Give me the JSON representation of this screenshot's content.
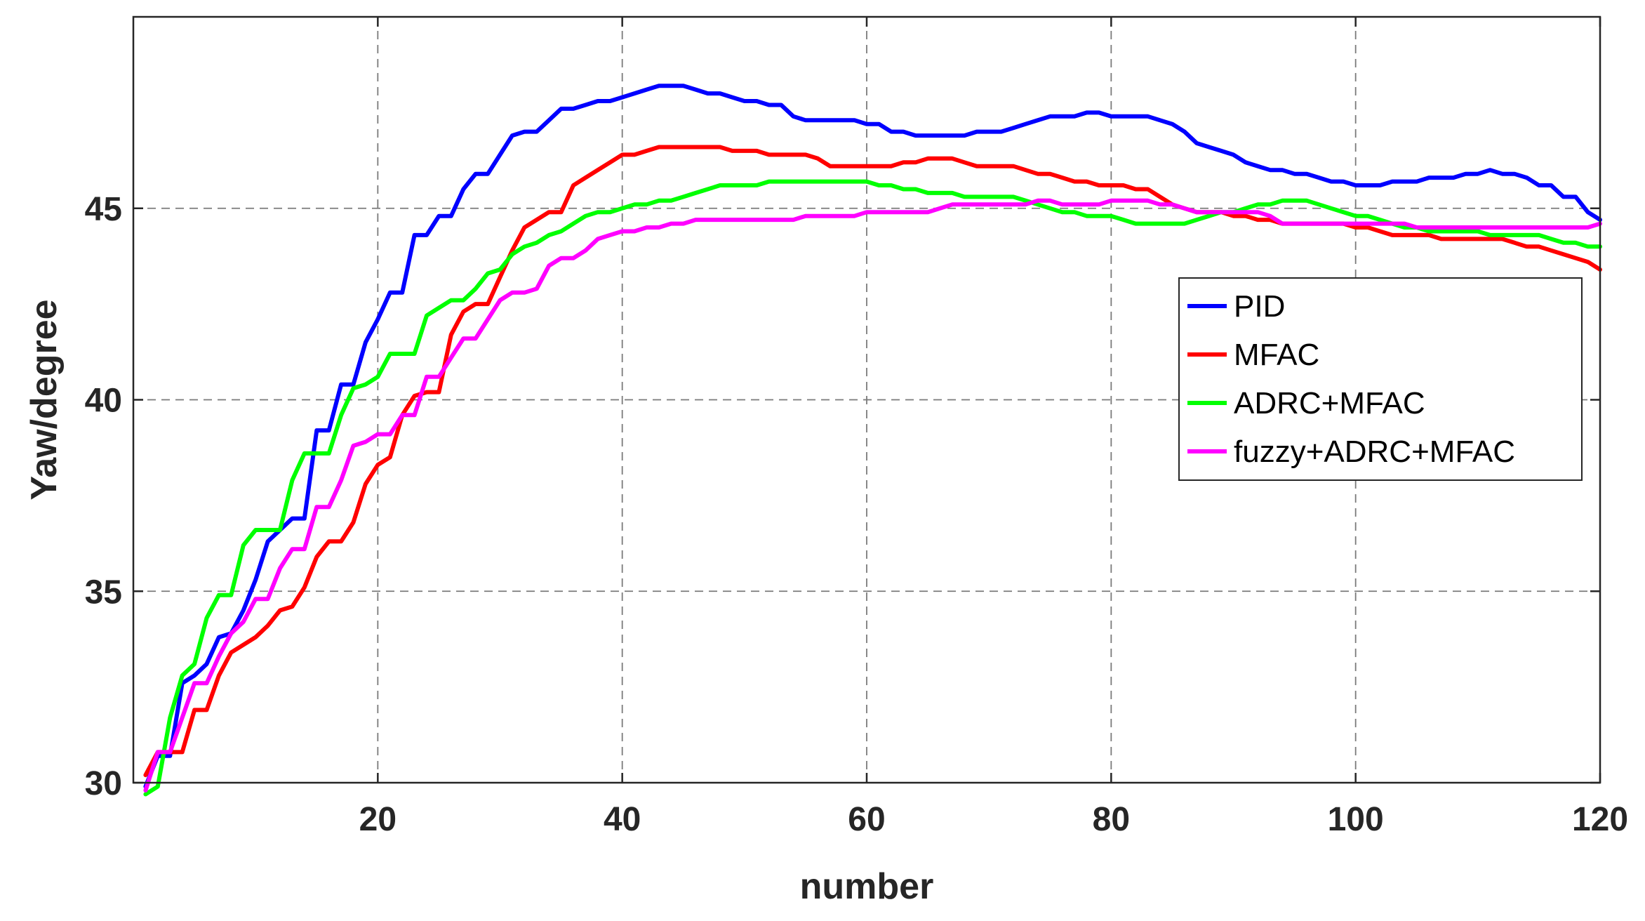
{
  "chart_data": {
    "type": "line",
    "title": "",
    "xlabel": "number",
    "ylabel": "Yaw/degree",
    "xlim": [
      0,
      120
    ],
    "ylim": [
      30,
      50
    ],
    "xticks": [
      20,
      40,
      60,
      80,
      100,
      120
    ],
    "yticks": [
      30,
      35,
      40,
      45
    ],
    "grid": true,
    "grid_style": "dashed",
    "legend_position": "right",
    "series": [
      {
        "name": "PID",
        "color": "#0000ff",
        "x": [
          1,
          2,
          3,
          4,
          5,
          6,
          7,
          8,
          9,
          10,
          11,
          12,
          13,
          14,
          15,
          16,
          17,
          18,
          19,
          20,
          21,
          22,
          23,
          24,
          25,
          26,
          27,
          28,
          29,
          30,
          31,
          32,
          33,
          34,
          35,
          36,
          37,
          38,
          39,
          40,
          41,
          42,
          43,
          44,
          45,
          46,
          47,
          48,
          49,
          50,
          51,
          52,
          53,
          54,
          55,
          56,
          57,
          58,
          59,
          60,
          61,
          62,
          63,
          64,
          65,
          66,
          67,
          68,
          69,
          70,
          71,
          72,
          73,
          74,
          75,
          76,
          77,
          78,
          79,
          80,
          81,
          82,
          83,
          84,
          85,
          86,
          87,
          88,
          89,
          90,
          91,
          92,
          93,
          94,
          95,
          96,
          97,
          98,
          99,
          100,
          101,
          102,
          103,
          104,
          105,
          106,
          107,
          108,
          109,
          110,
          111,
          112,
          113,
          114,
          115,
          116,
          117,
          118,
          119,
          120
        ],
        "y": [
          29.9,
          30.7,
          30.7,
          32.6,
          32.8,
          33.1,
          33.8,
          33.9,
          34.5,
          35.3,
          36.3,
          36.6,
          36.9,
          36.9,
          39.2,
          39.2,
          40.4,
          40.4,
          41.5,
          42.1,
          42.8,
          42.8,
          44.3,
          44.3,
          44.8,
          44.8,
          45.5,
          45.9,
          45.9,
          46.4,
          46.9,
          47.0,
          47.0,
          47.3,
          47.6,
          47.6,
          47.7,
          47.8,
          47.8,
          47.9,
          48.0,
          48.1,
          48.2,
          48.2,
          48.2,
          48.1,
          48.0,
          48.0,
          47.9,
          47.8,
          47.8,
          47.7,
          47.7,
          47.4,
          47.3,
          47.3,
          47.3,
          47.3,
          47.3,
          47.2,
          47.2,
          47.0,
          47.0,
          46.9,
          46.9,
          46.9,
          46.9,
          46.9,
          47.0,
          47.0,
          47.0,
          47.1,
          47.2,
          47.3,
          47.4,
          47.4,
          47.4,
          47.5,
          47.5,
          47.4,
          47.4,
          47.4,
          47.4,
          47.3,
          47.2,
          47.0,
          46.7,
          46.6,
          46.5,
          46.4,
          46.2,
          46.1,
          46.0,
          46.0,
          45.9,
          45.9,
          45.8,
          45.7,
          45.7,
          45.6,
          45.6,
          45.6,
          45.7,
          45.7,
          45.7,
          45.8,
          45.8,
          45.8,
          45.9,
          45.9,
          46.0,
          45.9,
          45.9,
          45.8,
          45.6,
          45.6,
          45.3,
          45.3,
          44.9,
          44.7
        ]
      },
      {
        "name": "MFAC",
        "color": "#ff0000",
        "x": [
          1,
          2,
          3,
          4,
          5,
          6,
          7,
          8,
          9,
          10,
          11,
          12,
          13,
          14,
          15,
          16,
          17,
          18,
          19,
          20,
          21,
          22,
          23,
          24,
          25,
          26,
          27,
          28,
          29,
          30,
          31,
          32,
          33,
          34,
          35,
          36,
          37,
          38,
          39,
          40,
          41,
          42,
          43,
          44,
          45,
          46,
          47,
          48,
          49,
          50,
          51,
          52,
          53,
          54,
          55,
          56,
          57,
          58,
          59,
          60,
          61,
          62,
          63,
          64,
          65,
          66,
          67,
          68,
          69,
          70,
          71,
          72,
          73,
          74,
          75,
          76,
          77,
          78,
          79,
          80,
          81,
          82,
          83,
          84,
          85,
          86,
          87,
          88,
          89,
          90,
          91,
          92,
          93,
          94,
          95,
          96,
          97,
          98,
          99,
          100,
          101,
          102,
          103,
          104,
          105,
          106,
          107,
          108,
          109,
          110,
          111,
          112,
          113,
          114,
          115,
          116,
          117,
          118,
          119,
          120
        ],
        "y": [
          30.2,
          30.8,
          30.8,
          30.8,
          31.9,
          31.9,
          32.8,
          33.4,
          33.6,
          33.8,
          34.1,
          34.5,
          34.6,
          35.1,
          35.9,
          36.3,
          36.3,
          36.8,
          37.8,
          38.3,
          38.5,
          39.6,
          40.1,
          40.2,
          40.2,
          41.7,
          42.3,
          42.5,
          42.5,
          43.2,
          43.9,
          44.5,
          44.7,
          44.9,
          44.9,
          45.6,
          45.8,
          46.0,
          46.2,
          46.4,
          46.4,
          46.5,
          46.6,
          46.6,
          46.6,
          46.6,
          46.6,
          46.6,
          46.5,
          46.5,
          46.5,
          46.4,
          46.4,
          46.4,
          46.4,
          46.3,
          46.1,
          46.1,
          46.1,
          46.1,
          46.1,
          46.1,
          46.2,
          46.2,
          46.3,
          46.3,
          46.3,
          46.2,
          46.1,
          46.1,
          46.1,
          46.1,
          46.0,
          45.9,
          45.9,
          45.8,
          45.7,
          45.7,
          45.6,
          45.6,
          45.6,
          45.5,
          45.5,
          45.3,
          45.1,
          45.0,
          44.9,
          44.9,
          44.9,
          44.8,
          44.8,
          44.7,
          44.7,
          44.6,
          44.6,
          44.6,
          44.6,
          44.6,
          44.6,
          44.5,
          44.5,
          44.4,
          44.3,
          44.3,
          44.3,
          44.3,
          44.2,
          44.2,
          44.2,
          44.2,
          44.2,
          44.2,
          44.1,
          44.0,
          44.0,
          43.9,
          43.8,
          43.7,
          43.6,
          43.4
        ]
      },
      {
        "name": "ADRC+MFAC",
        "color": "#00ff00",
        "x": [
          1,
          2,
          3,
          4,
          5,
          6,
          7,
          8,
          9,
          10,
          11,
          12,
          13,
          14,
          15,
          16,
          17,
          18,
          19,
          20,
          21,
          22,
          23,
          24,
          25,
          26,
          27,
          28,
          29,
          30,
          31,
          32,
          33,
          34,
          35,
          36,
          37,
          38,
          39,
          40,
          41,
          42,
          43,
          44,
          45,
          46,
          47,
          48,
          49,
          50,
          51,
          52,
          53,
          54,
          55,
          56,
          57,
          58,
          59,
          60,
          61,
          62,
          63,
          64,
          65,
          66,
          67,
          68,
          69,
          70,
          71,
          72,
          73,
          74,
          75,
          76,
          77,
          78,
          79,
          80,
          81,
          82,
          83,
          84,
          85,
          86,
          87,
          88,
          89,
          90,
          91,
          92,
          93,
          94,
          95,
          96,
          97,
          98,
          99,
          100,
          101,
          102,
          103,
          104,
          105,
          106,
          107,
          108,
          109,
          110,
          111,
          112,
          113,
          114,
          115,
          116,
          117,
          118,
          119,
          120
        ],
        "y": [
          29.7,
          29.9,
          31.7,
          32.8,
          33.1,
          34.3,
          34.9,
          34.9,
          36.2,
          36.6,
          36.6,
          36.6,
          37.9,
          38.6,
          38.6,
          38.6,
          39.6,
          40.3,
          40.4,
          40.6,
          41.2,
          41.2,
          41.2,
          42.2,
          42.4,
          42.6,
          42.6,
          42.9,
          43.3,
          43.4,
          43.8,
          44.0,
          44.1,
          44.3,
          44.4,
          44.6,
          44.8,
          44.9,
          44.9,
          45.0,
          45.1,
          45.1,
          45.2,
          45.2,
          45.3,
          45.4,
          45.5,
          45.6,
          45.6,
          45.6,
          45.6,
          45.7,
          45.7,
          45.7,
          45.7,
          45.7,
          45.7,
          45.7,
          45.7,
          45.7,
          45.6,
          45.6,
          45.5,
          45.5,
          45.4,
          45.4,
          45.4,
          45.3,
          45.3,
          45.3,
          45.3,
          45.3,
          45.2,
          45.1,
          45.0,
          44.9,
          44.9,
          44.8,
          44.8,
          44.8,
          44.7,
          44.6,
          44.6,
          44.6,
          44.6,
          44.6,
          44.7,
          44.8,
          44.9,
          44.9,
          45.0,
          45.1,
          45.1,
          45.2,
          45.2,
          45.2,
          45.1,
          45.0,
          44.9,
          44.8,
          44.8,
          44.7,
          44.6,
          44.5,
          44.5,
          44.4,
          44.4,
          44.4,
          44.4,
          44.4,
          44.3,
          44.3,
          44.3,
          44.3,
          44.3,
          44.2,
          44.1,
          44.1,
          44.0,
          44.0
        ]
      },
      {
        "name": "fuzzy+ADRC+MFAC",
        "color": "#ff00ff",
        "x": [
          1,
          2,
          3,
          4,
          5,
          6,
          7,
          8,
          9,
          10,
          11,
          12,
          13,
          14,
          15,
          16,
          17,
          18,
          19,
          20,
          21,
          22,
          23,
          24,
          25,
          26,
          27,
          28,
          29,
          30,
          31,
          32,
          33,
          34,
          35,
          36,
          37,
          38,
          39,
          40,
          41,
          42,
          43,
          44,
          45,
          46,
          47,
          48,
          49,
          50,
          51,
          52,
          53,
          54,
          55,
          56,
          57,
          58,
          59,
          60,
          61,
          62,
          63,
          64,
          65,
          66,
          67,
          68,
          69,
          70,
          71,
          72,
          73,
          74,
          75,
          76,
          77,
          78,
          79,
          80,
          81,
          82,
          83,
          84,
          85,
          86,
          87,
          88,
          89,
          90,
          91,
          92,
          93,
          94,
          95,
          96,
          97,
          98,
          99,
          100,
          101,
          102,
          103,
          104,
          105,
          106,
          107,
          108,
          109,
          110,
          111,
          112,
          113,
          114,
          115,
          116,
          117,
          118,
          119,
          120
        ],
        "y": [
          29.8,
          30.8,
          30.8,
          31.7,
          32.6,
          32.6,
          33.3,
          33.9,
          34.2,
          34.8,
          34.8,
          35.6,
          36.1,
          36.1,
          37.2,
          37.2,
          37.9,
          38.8,
          38.9,
          39.1,
          39.1,
          39.6,
          39.6,
          40.6,
          40.6,
          41.1,
          41.6,
          41.6,
          42.1,
          42.6,
          42.8,
          42.8,
          42.9,
          43.5,
          43.7,
          43.7,
          43.9,
          44.2,
          44.3,
          44.4,
          44.4,
          44.5,
          44.5,
          44.6,
          44.6,
          44.7,
          44.7,
          44.7,
          44.7,
          44.7,
          44.7,
          44.7,
          44.7,
          44.7,
          44.8,
          44.8,
          44.8,
          44.8,
          44.8,
          44.9,
          44.9,
          44.9,
          44.9,
          44.9,
          44.9,
          45.0,
          45.1,
          45.1,
          45.1,
          45.1,
          45.1,
          45.1,
          45.1,
          45.2,
          45.2,
          45.1,
          45.1,
          45.1,
          45.1,
          45.2,
          45.2,
          45.2,
          45.2,
          45.1,
          45.1,
          45.0,
          44.9,
          44.9,
          44.9,
          44.9,
          44.9,
          44.9,
          44.8,
          44.6,
          44.6,
          44.6,
          44.6,
          44.6,
          44.6,
          44.6,
          44.6,
          44.6,
          44.6,
          44.6,
          44.5,
          44.5,
          44.5,
          44.5,
          44.5,
          44.5,
          44.5,
          44.5,
          44.5,
          44.5,
          44.5,
          44.5,
          44.5,
          44.5,
          44.5,
          44.6
        ]
      }
    ]
  }
}
